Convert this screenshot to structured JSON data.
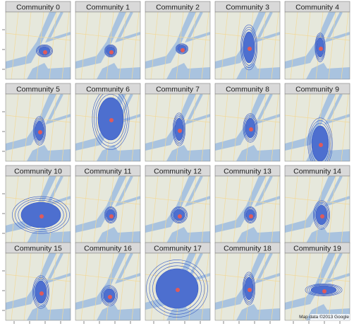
{
  "panels": [
    {
      "title": "Community 0"
    },
    {
      "title": "Community 1"
    },
    {
      "title": "Community 2"
    },
    {
      "title": "Community 3"
    },
    {
      "title": "Community 4"
    },
    {
      "title": "Community 5"
    },
    {
      "title": "Community 6"
    },
    {
      "title": "Community 7"
    },
    {
      "title": "Community 8"
    },
    {
      "title": "Community 9"
    },
    {
      "title": "Community 10"
    },
    {
      "title": "Community 11"
    },
    {
      "title": "Community 12"
    },
    {
      "title": "Community 13"
    },
    {
      "title": "Community 14"
    },
    {
      "title": "Community 15"
    },
    {
      "title": "Community 16"
    },
    {
      "title": "Community 17"
    },
    {
      "title": "Community 18"
    },
    {
      "title": "Community 19"
    }
  ],
  "attribution": "Map data ©2013 Google"
}
